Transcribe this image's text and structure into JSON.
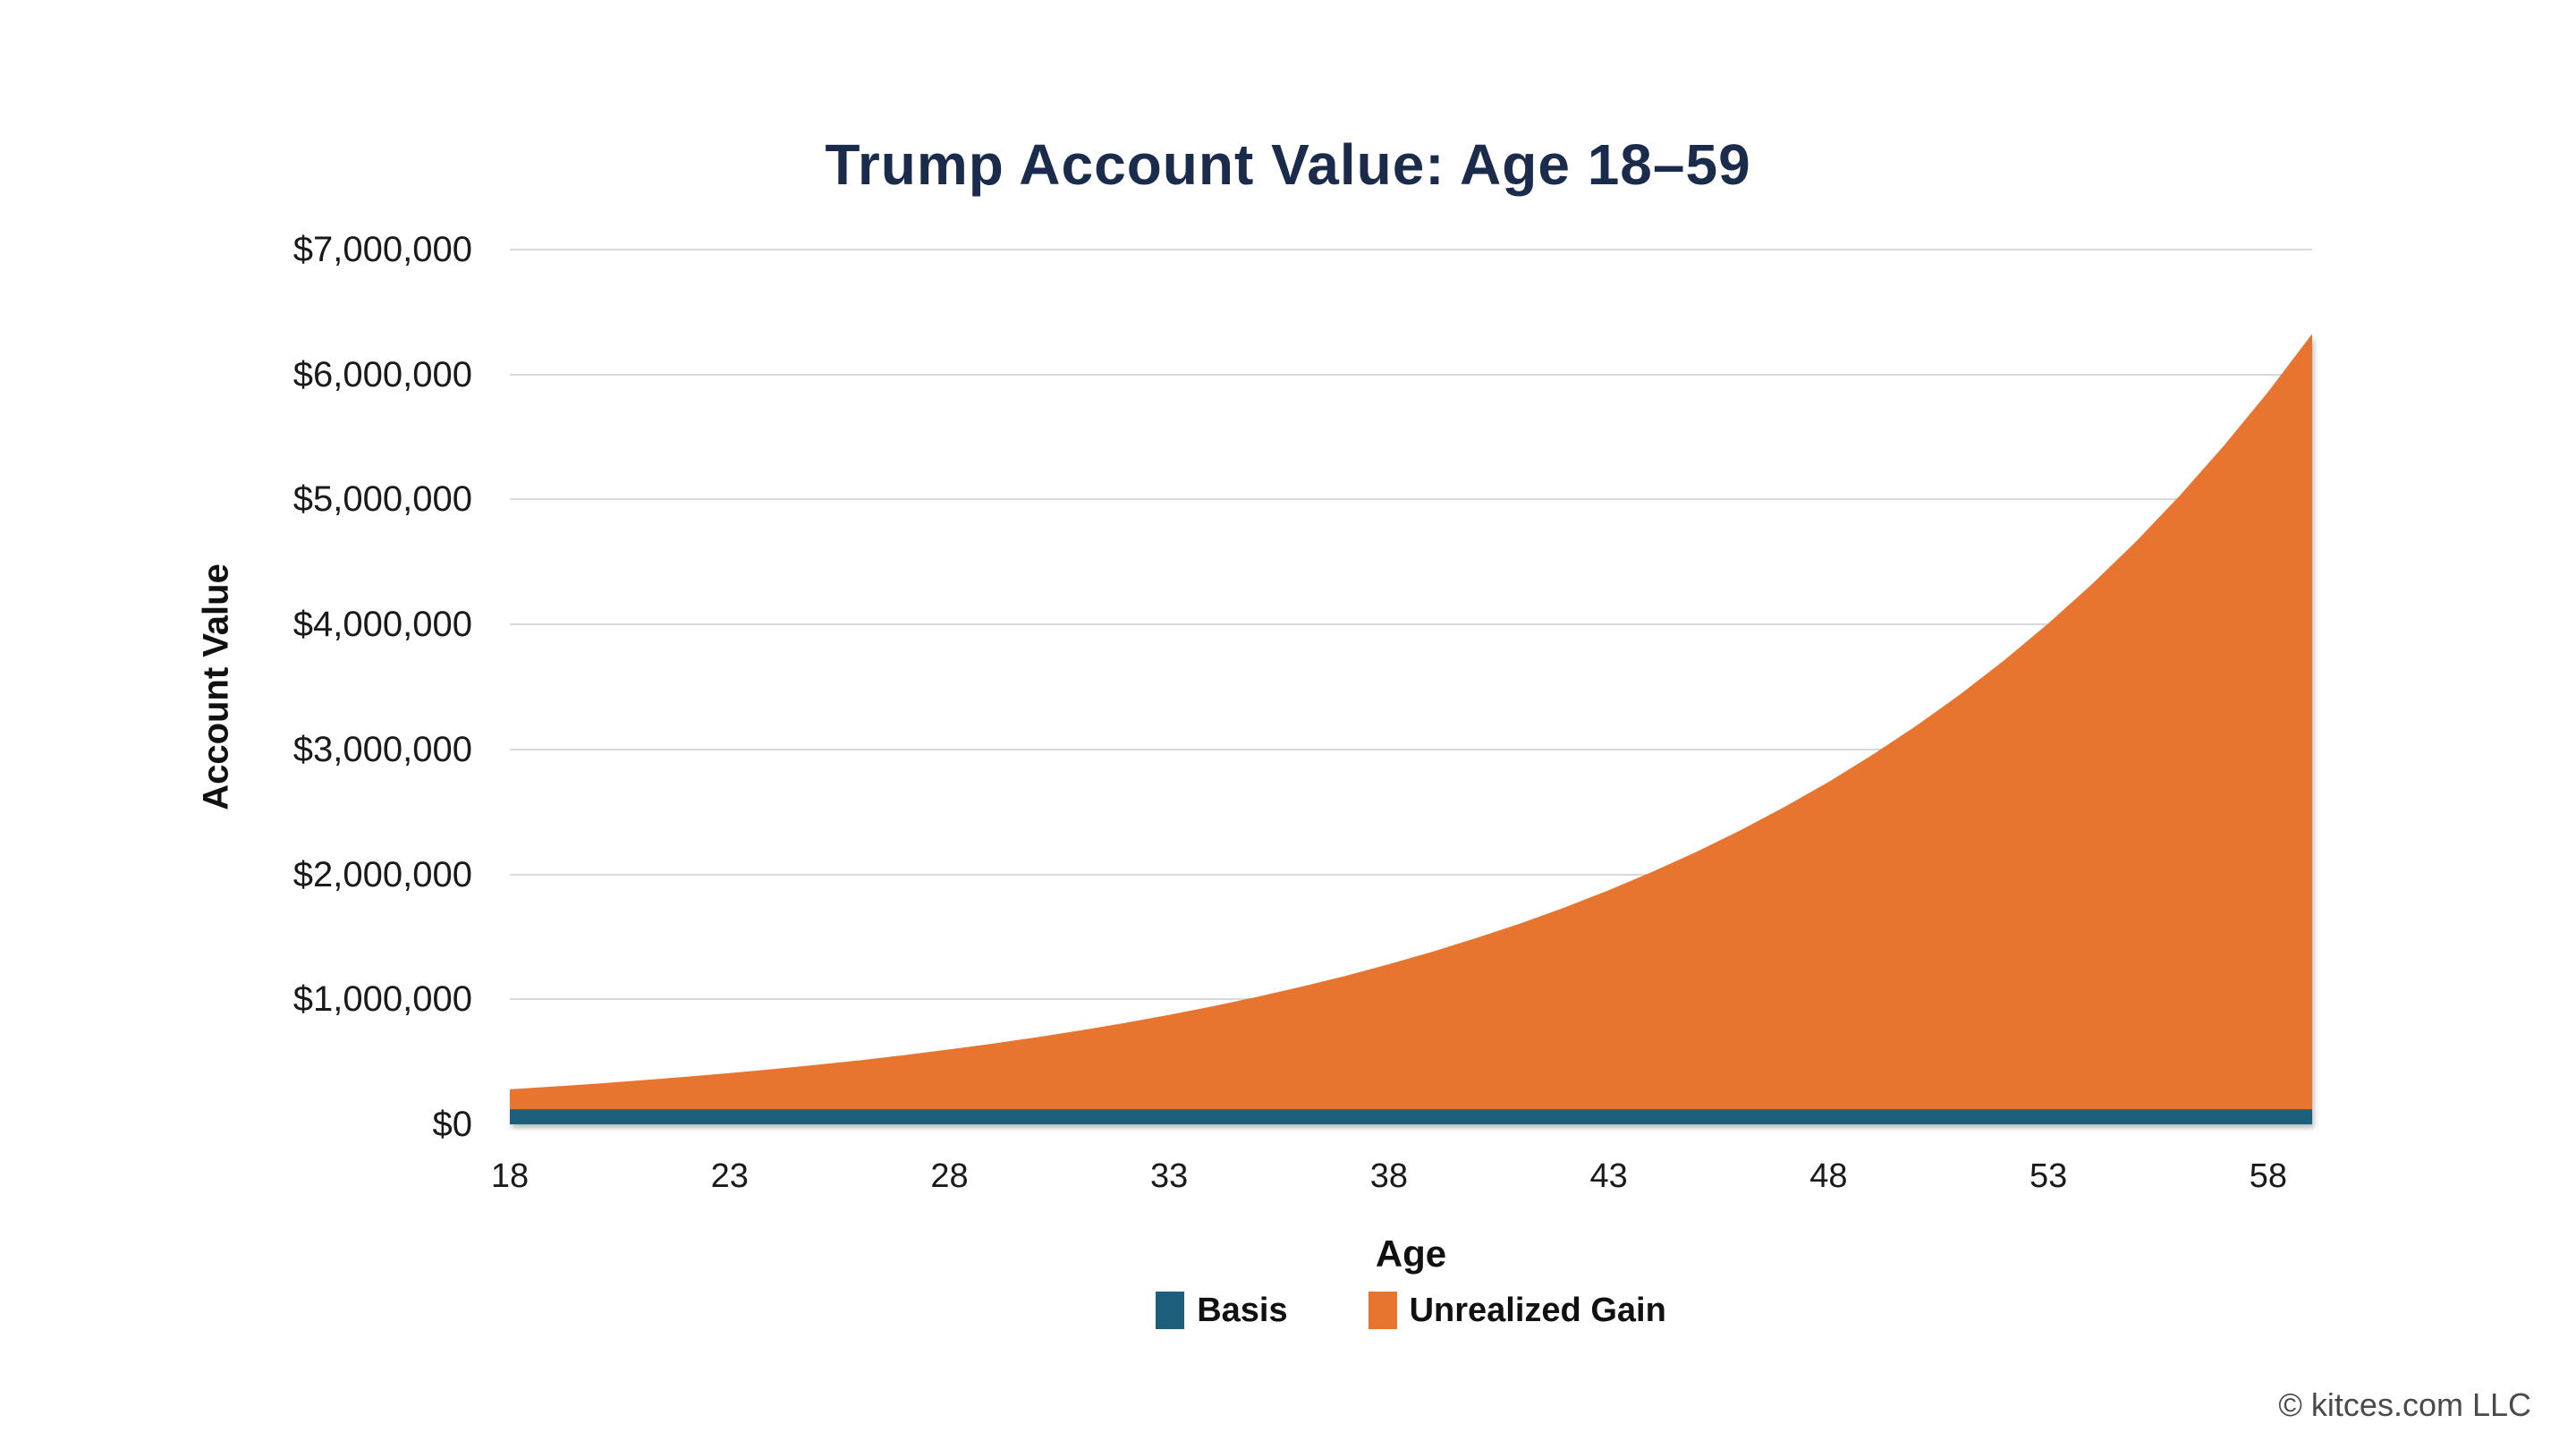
{
  "footer": {
    "copyright": "© kitces.com LLC"
  },
  "chart_data": {
    "type": "area",
    "stacked": true,
    "title": "Trump Account Value: Age 18–59",
    "title_color": "#1b2b4b",
    "xlabel": "Age",
    "ylabel": "Account Value",
    "x_min": 18,
    "x_max": 59,
    "y_min": 0,
    "y_max": 7000000,
    "grid": "horizontal",
    "gridline_color": "#d9d9d9",
    "legend_position": "bottom",
    "x_tick_values": [
      18,
      23,
      28,
      33,
      38,
      43,
      48,
      53,
      58
    ],
    "x_tick_labels": [
      "18",
      "23",
      "28",
      "33",
      "38",
      "43",
      "48",
      "53",
      "58"
    ],
    "y_tick_values": [
      0,
      1000000,
      2000000,
      3000000,
      4000000,
      5000000,
      6000000,
      7000000
    ],
    "y_tick_labels": [
      "$0",
      "$1,000,000",
      "$2,000,000",
      "$3,000,000",
      "$4,000,000",
      "$5,000,000",
      "$6,000,000",
      "$7,000,000"
    ],
    "ages": [
      18,
      19,
      20,
      21,
      22,
      23,
      24,
      25,
      26,
      27,
      28,
      29,
      30,
      31,
      32,
      33,
      34,
      35,
      36,
      37,
      38,
      39,
      40,
      41,
      42,
      43,
      44,
      45,
      46,
      47,
      48,
      49,
      50,
      51,
      52,
      53,
      54,
      55,
      56,
      57,
      58,
      59
    ],
    "series": [
      {
        "name": "Basis",
        "color": "#1b5f7d",
        "values": [
          120000,
          120000,
          120000,
          120000,
          120000,
          120000,
          120000,
          120000,
          120000,
          120000,
          120000,
          120000,
          120000,
          120000,
          120000,
          120000,
          120000,
          120000,
          120000,
          120000,
          120000,
          120000,
          120000,
          120000,
          120000,
          120000,
          120000,
          120000,
          120000,
          120000,
          120000,
          120000,
          120000,
          120000,
          120000,
          120000,
          120000,
          120000,
          120000,
          120000,
          120000,
          120000
        ]
      },
      {
        "name": "Unrealized Gain",
        "color": "#e7742f",
        "values": [
          160000,
          182000,
          206000,
          232000,
          260000,
          290000,
          322000,
          357000,
          394000,
          435000,
          479000,
          526000,
          577000,
          632000,
          692000,
          756000,
          825000,
          900000,
          980000,
          1067000,
          1161000,
          1262000,
          1372000,
          1489000,
          1616000,
          1754000,
          1902000,
          2061000,
          2234000,
          2420000,
          2620000,
          2837000,
          3070000,
          3322000,
          3595000,
          3888000,
          4205000,
          4546000,
          4915000,
          5313000,
          5742000,
          6205000
        ]
      }
    ],
    "totals": [
      280000,
      302000,
      326000,
      352000,
      380000,
      410000,
      442000,
      477000,
      514000,
      555000,
      599000,
      646000,
      697000,
      752000,
      812000,
      876000,
      945000,
      1020000,
      1100000,
      1187000,
      1281000,
      1382000,
      1492000,
      1609000,
      1736000,
      1874000,
      2022000,
      2181000,
      2354000,
      2540000,
      2740000,
      2957000,
      3190000,
      3442000,
      3715000,
      4008000,
      4325000,
      4666000,
      5035000,
      5433000,
      5862000,
      6325000
    ]
  }
}
